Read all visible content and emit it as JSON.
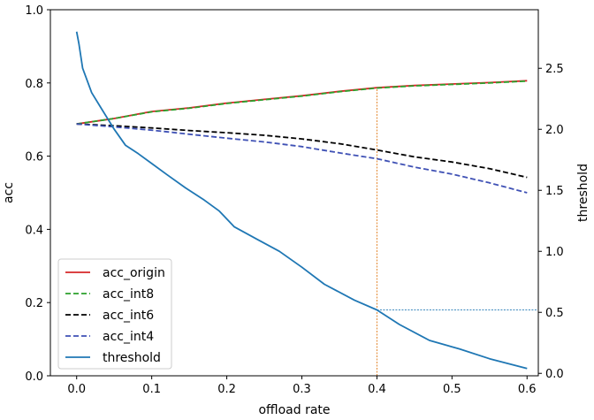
{
  "chart_data": {
    "type": "line",
    "title": "",
    "xlabel": "offload rate",
    "ylabel_left": "acc",
    "ylabel_right": "threshold",
    "xlim": [
      -0.035,
      0.615
    ],
    "ylim_left": [
      0.0,
      1.0
    ],
    "ylim_right": [
      -0.02,
      2.98
    ],
    "x_ticks": [
      0.0,
      0.1,
      0.2,
      0.3,
      0.4,
      0.5,
      0.6
    ],
    "x_tick_labels": [
      "0.0",
      "0.1",
      "0.2",
      "0.3",
      "0.4",
      "0.5",
      "0.6"
    ],
    "y_left_ticks": [
      0.0,
      0.2,
      0.4,
      0.6,
      0.8,
      1.0
    ],
    "y_left_tick_labels": [
      "0.0",
      "0.2",
      "0.4",
      "0.6",
      "0.8",
      "1.0"
    ],
    "y_right_ticks": [
      0.0,
      0.5,
      1.0,
      1.5,
      2.0,
      2.5
    ],
    "y_right_tick_labels": [
      "0.0",
      "0.5",
      "1.0",
      "1.5",
      "2.0",
      "2.5"
    ],
    "legend_position": "lower-left",
    "series": [
      {
        "name": "acc_origin",
        "axis": "left",
        "style": "solid",
        "color": "#d62728",
        "x": [
          0.0,
          0.05,
          0.1,
          0.15,
          0.2,
          0.25,
          0.3,
          0.35,
          0.4,
          0.45,
          0.5,
          0.55,
          0.6
        ],
        "y": [
          0.688,
          0.703,
          0.722,
          0.732,
          0.745,
          0.755,
          0.765,
          0.777,
          0.787,
          0.793,
          0.797,
          0.801,
          0.806
        ]
      },
      {
        "name": "acc_int8",
        "axis": "left",
        "style": "dashed",
        "color": "#2ca02c",
        "x": [
          0.0,
          0.05,
          0.1,
          0.15,
          0.2,
          0.25,
          0.3,
          0.35,
          0.4,
          0.45,
          0.5,
          0.55,
          0.6
        ],
        "y": [
          0.688,
          0.703,
          0.721,
          0.731,
          0.744,
          0.754,
          0.764,
          0.776,
          0.786,
          0.792,
          0.796,
          0.8,
          0.805
        ]
      },
      {
        "name": "acc_int6",
        "axis": "left",
        "style": "dashed",
        "color": "#000000",
        "x": [
          0.0,
          0.05,
          0.1,
          0.15,
          0.2,
          0.25,
          0.3,
          0.35,
          0.4,
          0.45,
          0.5,
          0.55,
          0.6
        ],
        "y": [
          0.688,
          0.683,
          0.677,
          0.67,
          0.664,
          0.657,
          0.647,
          0.634,
          0.617,
          0.598,
          0.584,
          0.566,
          0.542
        ]
      },
      {
        "name": "acc_int4",
        "axis": "left",
        "style": "dashed",
        "color": "#3f51b5",
        "x": [
          0.0,
          0.05,
          0.1,
          0.15,
          0.2,
          0.25,
          0.3,
          0.35,
          0.4,
          0.45,
          0.5,
          0.55,
          0.6
        ],
        "y": [
          0.688,
          0.68,
          0.671,
          0.66,
          0.649,
          0.639,
          0.626,
          0.609,
          0.593,
          0.57,
          0.551,
          0.527,
          0.5
        ]
      },
      {
        "name": "threshold",
        "axis": "right",
        "style": "solid",
        "color": "#1f77b4",
        "x": [
          0.0,
          0.003,
          0.008,
          0.02,
          0.035,
          0.05,
          0.065,
          0.082,
          0.1,
          0.12,
          0.145,
          0.17,
          0.19,
          0.21,
          0.24,
          0.27,
          0.3,
          0.33,
          0.37,
          0.4,
          0.43,
          0.47,
          0.51,
          0.55,
          0.6
        ],
        "y": [
          2.8,
          2.7,
          2.5,
          2.3,
          2.15,
          2.0,
          1.87,
          1.8,
          1.72,
          1.63,
          1.52,
          1.42,
          1.33,
          1.2,
          1.1,
          1.0,
          0.87,
          0.73,
          0.6,
          0.52,
          0.4,
          0.27,
          0.2,
          0.12,
          0.04
        ]
      }
    ],
    "annotations": [
      {
        "type": "vline",
        "x": 0.4,
        "y_from_left": 0.0,
        "y_to_left": 0.787,
        "color": "#e07b1a",
        "style": "dotted"
      },
      {
        "type": "hline",
        "y_right": 0.52,
        "x_from": 0.4,
        "x_to": 0.615,
        "color": "#1f77b4",
        "style": "dotted"
      }
    ]
  }
}
